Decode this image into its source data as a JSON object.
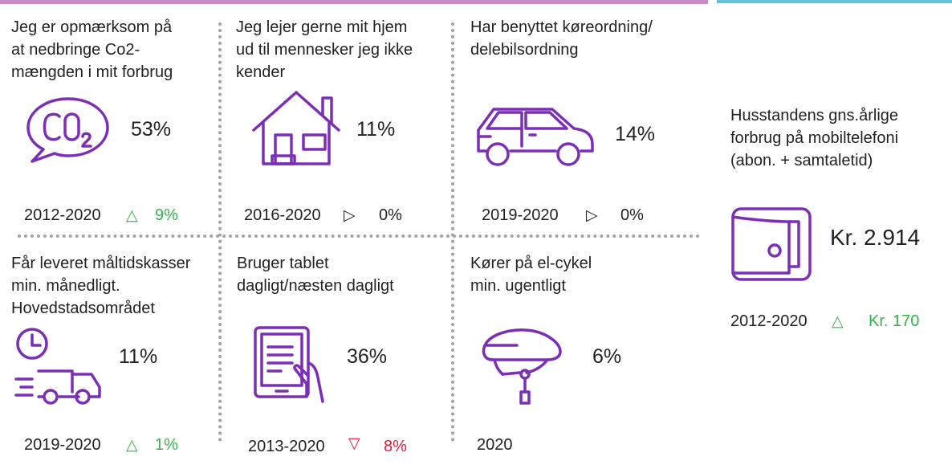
{
  "colors": {
    "purple": "#7b2fb5",
    "up": "#36b24a",
    "down": "#e01b3c",
    "neutral": "#222222",
    "divider": "#a3a3a3",
    "topbar_left": "#c78ac2",
    "topbar_right": "#5fc6d2"
  },
  "cards": [
    {
      "title_lines": [
        "Jeg er opmærksom på",
        "at nedbringe Co2-",
        "mængden i mit forbrug"
      ],
      "icon": "co2-icon",
      "value": "53%",
      "period": "2012-2020",
      "trend": "up",
      "change": "9%"
    },
    {
      "title_lines": [
        "Jeg lejer gerne mit hjem",
        "ud til mennesker jeg ikke",
        "kender"
      ],
      "icon": "house-icon",
      "value": "11%",
      "period": "2016-2020",
      "trend": "neutral",
      "change": "0%"
    },
    {
      "title_lines": [
        "Har benyttet køreordning/",
        "delebilsordning"
      ],
      "icon": "car-icon",
      "value": "14%",
      "period": "2019-2020",
      "trend": "neutral",
      "change": "0%"
    },
    {
      "title_lines": [
        "Får leveret måltidskasser",
        "min. månedligt.",
        "Hovedstadsområdet"
      ],
      "icon": "delivery-truck-icon",
      "value": "11%",
      "period": "2019-2020",
      "trend": "up",
      "change": "1%"
    },
    {
      "title_lines": [
        "Bruger tablet",
        "dagligt/næsten dagligt"
      ],
      "icon": "tablet-icon",
      "value": "36%",
      "period": "2013-2020",
      "trend": "down",
      "change": "8%"
    },
    {
      "title_lines": [
        "Kører på el-cykel",
        "min. ugentligt"
      ],
      "icon": "bike-helmet-icon",
      "value": "6%",
      "period": "2020",
      "trend": null,
      "change": ""
    }
  ],
  "side": {
    "title_lines": [
      "Husstandens gns.årlige",
      "forbrug på mobiltelefoni",
      "(abon. + samtaletid)"
    ],
    "icon": "wallet-icon",
    "value": "Kr. 2.914",
    "period": "2012-2020",
    "trend": "up",
    "change": "Kr. 170"
  }
}
